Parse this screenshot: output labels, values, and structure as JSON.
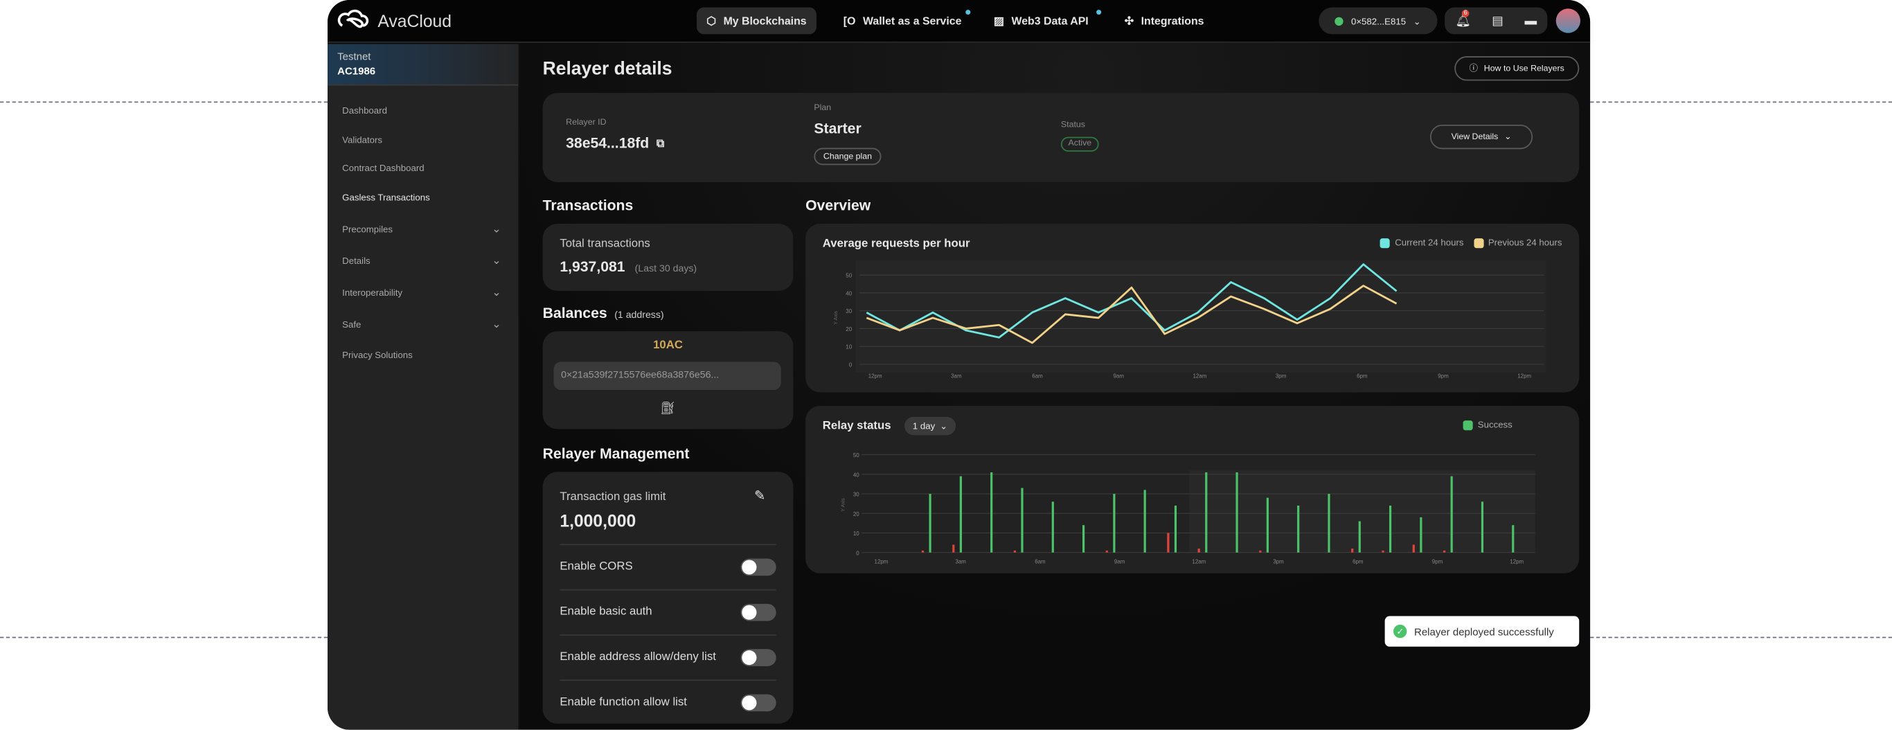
{
  "app": {
    "brand": "AvaCloud",
    "logo_icon": "cloud-infinity-icon"
  },
  "nav": {
    "items": [
      {
        "label": "My Blockchains",
        "icon": "cube-icon",
        "active": true
      },
      {
        "label": "Wallet as a Service",
        "icon": "wallet-icon",
        "new": true
      },
      {
        "label": "Web3 Data API",
        "icon": "chart-icon",
        "new": true
      },
      {
        "label": "Integrations",
        "icon": "puzzle-icon"
      }
    ],
    "wallet_address": "0×582...E815",
    "notification_count": "6"
  },
  "sidebar": {
    "network": "Testnet",
    "chain": "AC1986",
    "items": [
      {
        "label": "Dashboard"
      },
      {
        "label": "Validators"
      },
      {
        "label": "Contract Dashboard"
      },
      {
        "label": "Gasless Transactions",
        "active": true
      },
      {
        "label": "Precompiles",
        "expandable": true
      },
      {
        "label": "Details",
        "expandable": true
      },
      {
        "label": "Interoperability",
        "expandable": true
      },
      {
        "label": "Safe",
        "expandable": true
      },
      {
        "label": "Privacy Solutions"
      }
    ]
  },
  "page": {
    "title": "Relayer details",
    "help_button": "How to Use Relayers"
  },
  "details": {
    "relayer_id_label": "Relayer ID",
    "relayer_id": "38e54...18fd",
    "plan_label": "Plan",
    "plan": "Starter",
    "change_plan": "Change plan",
    "status_label": "Status",
    "status": "Active",
    "view_details": "View Details"
  },
  "transactions": {
    "heading": "Transactions",
    "total_label": "Total transactions",
    "total": "1,937,081",
    "period": "(Last 30 days)"
  },
  "balances": {
    "heading": "Balances",
    "count": "(1 address)",
    "amount": "10AC",
    "address": "0×21a539f2715576ee68a3876e56..."
  },
  "management": {
    "heading": "Relayer Management",
    "gas_label": "Transaction gas limit",
    "gas_value": "1,000,000",
    "toggles": [
      {
        "label": "Enable CORS",
        "on": false
      },
      {
        "label": "Enable basic auth",
        "on": false
      },
      {
        "label": "Enable address allow/deny list",
        "on": false
      },
      {
        "label": "Enable function allow list",
        "on": false
      }
    ]
  },
  "overview": {
    "heading": "Overview"
  },
  "toast": {
    "message": "Relayer deployed successfully"
  },
  "colors": {
    "current": "#6fe6e0",
    "previous": "#f2d28a",
    "success": "#4cc36a",
    "failed": "#e0453a",
    "accent_gold": "#d4a85a"
  },
  "chart_data": [
    {
      "type": "line",
      "title": "Average requests per hour",
      "ylabel": "Y Axis",
      "ylim": [
        0,
        58
      ],
      "yticks": [
        0,
        10,
        20,
        30,
        40,
        50
      ],
      "xticks": [
        "12pm",
        "3am",
        "6am",
        "9am",
        "12am",
        "3pm",
        "6pm",
        "9pm",
        "12pm"
      ],
      "legend": "top-right",
      "grid": true,
      "series": [
        {
          "name": "Current 24 hours",
          "color": "#6fe6e0",
          "values": [
            29,
            19,
            29,
            19,
            15,
            29,
            37,
            29,
            37,
            19,
            29,
            46,
            37,
            25,
            37,
            56,
            41
          ]
        },
        {
          "name": "Previous 24 hours",
          "color": "#f2d28a",
          "values": [
            26,
            19,
            26,
            20,
            22,
            12,
            28,
            26,
            43,
            17,
            26,
            38,
            31,
            23,
            31,
            44,
            34
          ]
        }
      ]
    },
    {
      "type": "bar",
      "title": "Relay status",
      "range_select": "1 day",
      "ylabel": "Y Axis",
      "ylim": [
        0,
        50
      ],
      "yticks": [
        0,
        10,
        20,
        30,
        40,
        50
      ],
      "xticks": [
        "12pm",
        "3am",
        "6am",
        "9am",
        "12am",
        "3pm",
        "6pm",
        "9pm",
        "12pm"
      ],
      "legend": "top-right",
      "grid": true,
      "series": [
        {
          "name": "Success",
          "color": "#4cc36a",
          "values": [
            30,
            39,
            41,
            33,
            26,
            14,
            30,
            32,
            24,
            41,
            41,
            28,
            24,
            30,
            16,
            24,
            18,
            39,
            26,
            14
          ]
        },
        {
          "color": "#e0453a",
          "values": [
            1,
            4,
            0,
            1,
            0,
            0,
            1,
            0,
            10,
            2,
            0,
            1,
            0,
            0,
            2,
            1,
            4,
            1,
            0,
            0
          ]
        }
      ]
    }
  ]
}
